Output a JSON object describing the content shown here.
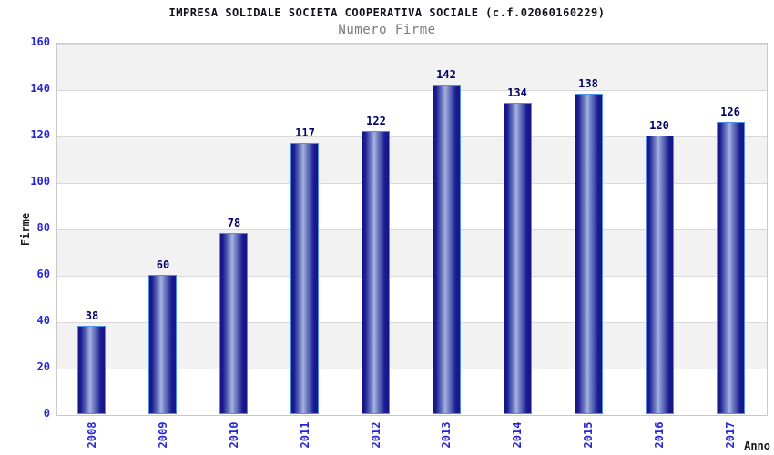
{
  "chart_data": {
    "type": "bar",
    "title": "IMPRESA SOLIDALE SOCIETA COOPERATIVA SOCIALE (c.f.02060160229)",
    "subtitle": "Numero Firme",
    "xlabel": "Anno",
    "ylabel": "Firme",
    "categories": [
      "2008",
      "2009",
      "2010",
      "2011",
      "2012",
      "2013",
      "2014",
      "2015",
      "2016",
      "2017"
    ],
    "values": [
      38,
      60,
      78,
      117,
      122,
      142,
      134,
      138,
      120,
      126
    ],
    "ylim": [
      0,
      160
    ],
    "ytick_step": 20,
    "yticks": [
      0,
      20,
      40,
      60,
      80,
      100,
      120,
      140,
      160
    ],
    "legend": "none",
    "grid": "horizontal-bands-alternating",
    "colors": {
      "bar_edge": "#4e90e8",
      "bar_dark": "#151589",
      "bar_highlight": "#a6b1e1",
      "tick_text": "#2626d8",
      "value_label_text": "#000066",
      "title_text": "#101018",
      "subtitle_text": "#7a7a7a",
      "axis_title_text": "#1a1a1a",
      "band_gray": "#f2f2f2",
      "band_white": "#ffffff",
      "grid_line": "#d9d9d9",
      "plot_border": "#c9c9c9",
      "background": "#ffffff"
    }
  }
}
